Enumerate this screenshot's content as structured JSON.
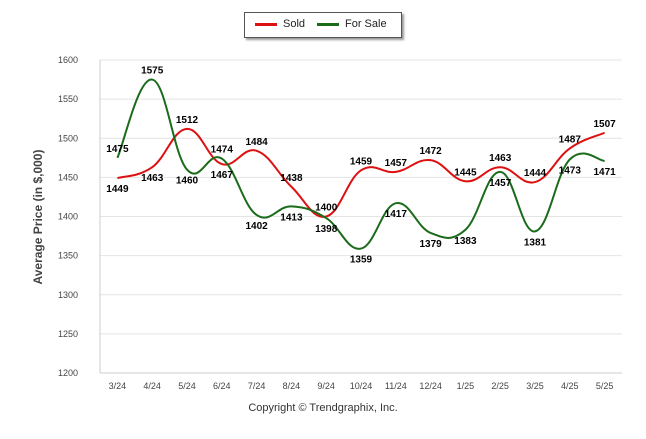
{
  "chart_data": {
    "type": "line",
    "categories": [
      "3/24",
      "4/24",
      "5/24",
      "6/24",
      "7/24",
      "8/24",
      "9/24",
      "10/24",
      "11/24",
      "12/24",
      "1/25",
      "2/25",
      "3/25",
      "4/25",
      "5/25"
    ],
    "series": [
      {
        "name": "Sold",
        "color": "#dd1111",
        "values": [
          1449,
          1463,
          1512,
          1467,
          1484,
          1438,
          1400,
          1459,
          1457,
          1472,
          1445,
          1463,
          1444,
          1487,
          1507
        ]
      },
      {
        "name": "For Sale",
        "color": "#1a6b1a",
        "values": [
          1475,
          1575,
          1460,
          1474,
          1402,
          1413,
          1398,
          1359,
          1417,
          1379,
          1383,
          1457,
          1381,
          1473,
          1471
        ]
      }
    ],
    "ylabel": "Average Price (in $,000)",
    "xlabel": "",
    "ylim": [
      1200,
      1600
    ],
    "yticks": [
      1200,
      1250,
      1300,
      1350,
      1400,
      1450,
      1500,
      1550,
      1600
    ],
    "grid": true,
    "legend": "top-center"
  },
  "legend": {
    "sold_label": "Sold",
    "for_sale_label": "For Sale"
  },
  "footer": {
    "copyright": "Copyright © Trendgraphix, Inc."
  }
}
